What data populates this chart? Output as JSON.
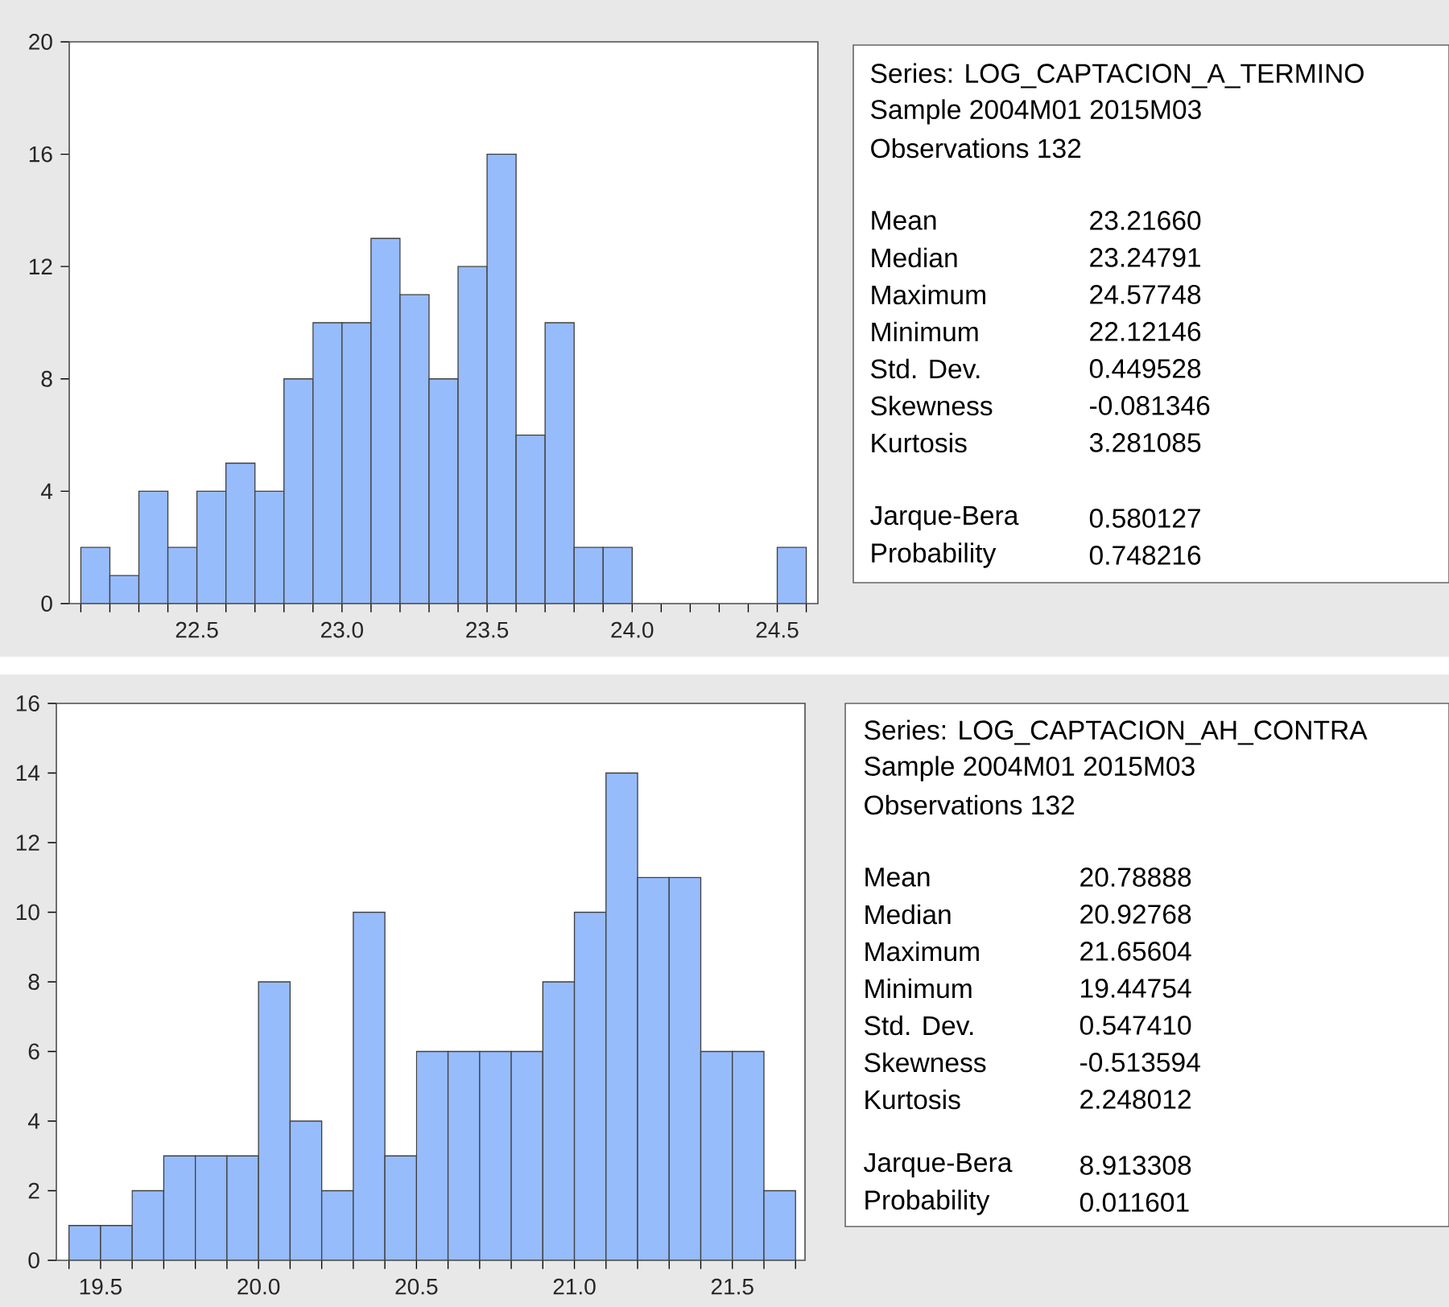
{
  "chart_data": [
    {
      "type": "histogram",
      "bins": [
        22.1,
        22.2,
        22.3,
        22.4,
        22.5,
        22.6,
        22.7,
        22.8,
        22.9,
        23.0,
        23.1,
        23.2,
        23.3,
        23.4,
        23.5,
        23.6,
        23.7,
        23.8,
        23.9,
        24.0,
        24.1,
        24.2,
        24.3,
        24.4,
        24.5,
        24.6
      ],
      "values": [
        2,
        1,
        4,
        2,
        4,
        5,
        4,
        8,
        10,
        10,
        13,
        11,
        8,
        12,
        16,
        6,
        10,
        2,
        2,
        0,
        0,
        0,
        0,
        0,
        2
      ],
      "color": "#97bcfc",
      "xlim": [
        22.06,
        24.64
      ],
      "ylim": [
        0,
        20
      ],
      "xticks": [
        {
          "value": 22.1,
          "label": null
        },
        {
          "value": 22.2,
          "label": null
        },
        {
          "value": 22.3,
          "label": null
        },
        {
          "value": 22.4,
          "label": null
        },
        22.5,
        {
          "value": 22.6,
          "label": null
        },
        {
          "value": 22.7,
          "label": null
        },
        {
          "value": 22.8,
          "label": null
        },
        {
          "value": 22.9,
          "label": null
        },
        {
          "value": 23,
          "label": "23.0"
        },
        {
          "value": 23.1,
          "label": null
        },
        {
          "value": 23.2,
          "label": null
        },
        {
          "value": 23.3,
          "label": null
        },
        {
          "value": 23.4,
          "label": null
        },
        23.5,
        {
          "value": 23.6,
          "label": null
        },
        {
          "value": 23.7,
          "label": null
        },
        {
          "value": 23.8,
          "label": null
        },
        {
          "value": 23.9,
          "label": null
        },
        {
          "value": 24,
          "label": "24.0"
        },
        {
          "value": 24.1,
          "label": null
        },
        {
          "value": 24.2,
          "label": null
        },
        {
          "value": 24.3,
          "label": null
        },
        {
          "value": 24.4,
          "label": null
        },
        24.5,
        {
          "value": 24.6,
          "label": null
        }
      ],
      "yticks": [
        0,
        4,
        8,
        12,
        16,
        20
      ]
    },
    {
      "type": "other",
      "annotations": [
        "Series: LOG_CAPTACION_A_TERMINO",
        "Sample 2004M01 2015M03",
        "Observations 132",
        "Mean",
        "23.21660",
        "Median",
        "23.24791",
        "Maximum",
        "24.57748",
        "Minimum",
        "22.12146",
        "Std. Dev.",
        "0.449528",
        "Skewness",
        "-0.081346",
        "Kurtosis",
        "3.281085",
        "Jarque-Bera",
        "0.580127",
        "Probability",
        "0.748216"
      ]
    },
    {
      "type": "histogram",
      "bins": [
        19.4,
        19.5,
        19.6,
        19.7,
        19.8,
        19.9,
        20.0,
        20.1,
        20.2,
        20.3,
        20.4,
        20.5,
        20.6,
        20.7,
        20.8,
        20.9,
        21.0,
        21.1,
        21.2,
        21.3,
        21.4,
        21.5,
        21.6,
        21.7
      ],
      "values": [
        1,
        1,
        2,
        3,
        3,
        3,
        8,
        4,
        2,
        10,
        3,
        6,
        6,
        6,
        6,
        8,
        10,
        14,
        11,
        11,
        6,
        6,
        2
      ],
      "color": "#97bcfc",
      "xlim": [
        19.36,
        21.73
      ],
      "ylim": [
        0,
        16
      ],
      "xticks": [
        {
          "value": 19.4,
          "label": null
        },
        19.5,
        {
          "value": 19.6,
          "label": null
        },
        {
          "value": 19.7,
          "label": null
        },
        {
          "value": 19.8,
          "label": null
        },
        {
          "value": 19.9,
          "label": null
        },
        {
          "value": 20,
          "label": "20.0"
        },
        {
          "value": 20.1,
          "label": null
        },
        {
          "value": 20.2,
          "label": null
        },
        {
          "value": 20.3,
          "label": null
        },
        {
          "value": 20.4,
          "label": null
        },
        20.5,
        {
          "value": 20.6,
          "label": null
        },
        {
          "value": 20.7,
          "label": null
        },
        {
          "value": 20.8,
          "label": null
        },
        {
          "value": 20.9,
          "label": null
        },
        {
          "value": 21,
          "label": "21.0"
        },
        {
          "value": 21.1,
          "label": null
        },
        {
          "value": 21.2,
          "label": null
        },
        {
          "value": 21.3,
          "label": null
        },
        {
          "value": 21.4,
          "label": null
        },
        21.5,
        {
          "value": 21.6,
          "label": null
        },
        {
          "value": 21.7,
          "label": null
        }
      ],
      "yticks": [
        0,
        2,
        4,
        6,
        8,
        10,
        12,
        14,
        16
      ]
    },
    {
      "type": "other",
      "annotations": [
        "Series: LOG_CAPTACION_AH_CONTRA",
        "Sample 2004M01 2015M03",
        "Observations 132",
        "Mean",
        "20.78888",
        "Median",
        "20.92768",
        "Maximum",
        "21.65604",
        "Minimum",
        "19.44754",
        "Std. Dev.",
        "0.547410",
        "Skewness",
        "-0.513594",
        "Kurtosis",
        "2.248012",
        "Jarque-Bera",
        "8.913308",
        "Probability",
        "0.011601"
      ]
    }
  ]
}
